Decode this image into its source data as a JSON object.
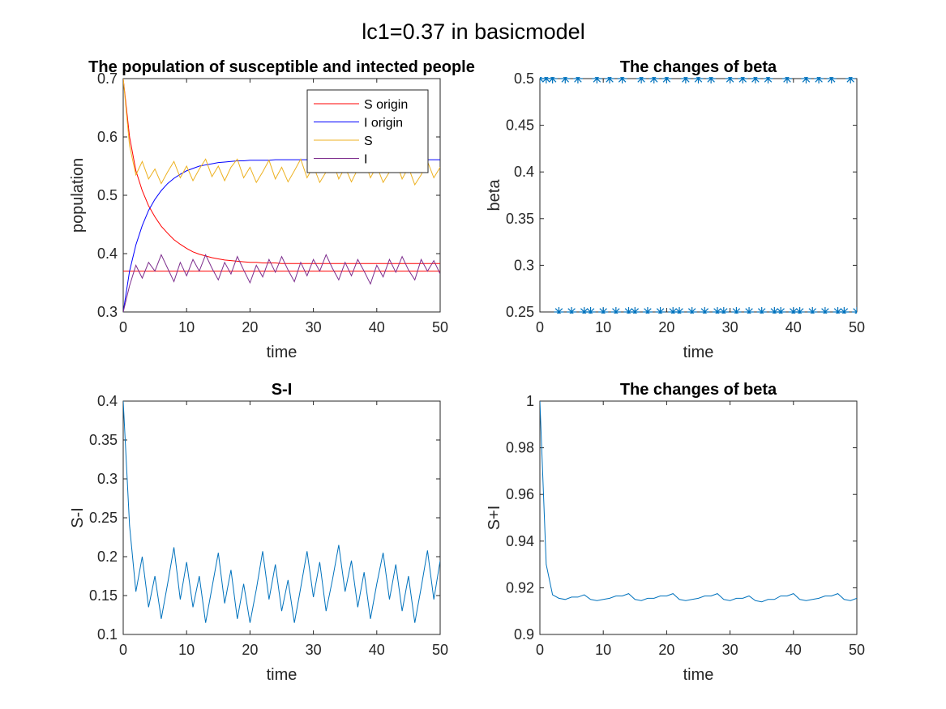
{
  "figure_title": "lc1=0.37 in basicmodel",
  "chart_data": [
    {
      "type": "line",
      "title": "The population of susceptible and intected people",
      "xlabel": "time",
      "ylabel": "population",
      "xlim": [
        0,
        50
      ],
      "ylim": [
        0.3,
        0.7
      ],
      "xticks": [
        "0",
        "10",
        "20",
        "30",
        "40",
        "50"
      ],
      "yticks": [
        "0.3",
        "0.4",
        "0.5",
        "0.6",
        "0.7"
      ],
      "legend_position": "top-right",
      "threshold_line": 0.37,
      "series": [
        {
          "name": "S origin",
          "color": "#ff0000",
          "x": [
            0,
            1,
            2,
            3,
            4,
            5,
            6,
            7,
            8,
            9,
            10,
            11,
            12,
            13,
            14,
            15,
            16,
            17,
            18,
            19,
            20,
            21,
            22,
            23,
            24,
            25,
            26,
            27,
            28,
            29,
            30,
            31,
            32,
            33,
            34,
            35,
            36,
            37,
            38,
            39,
            40,
            41,
            42,
            43,
            44,
            45,
            46,
            47,
            48,
            49,
            50
          ],
          "values": [
            0.7,
            0.6,
            0.542,
            0.508,
            0.482,
            0.463,
            0.447,
            0.435,
            0.424,
            0.416,
            0.409,
            0.403,
            0.399,
            0.396,
            0.393,
            0.391,
            0.389,
            0.388,
            0.387,
            0.386,
            0.385,
            0.385,
            0.384,
            0.384,
            0.384,
            0.383,
            0.383,
            0.383,
            0.383,
            0.383,
            0.383,
            0.383,
            0.383,
            0.383,
            0.383,
            0.383,
            0.383,
            0.383,
            0.383,
            0.383,
            0.383,
            0.383,
            0.383,
            0.383,
            0.383,
            0.383,
            0.383,
            0.383,
            0.383,
            0.383,
            0.383
          ]
        },
        {
          "name": "I origin",
          "color": "#0000ff",
          "x": [
            0,
            1,
            2,
            3,
            4,
            5,
            6,
            7,
            8,
            9,
            10,
            11,
            12,
            13,
            14,
            15,
            16,
            17,
            18,
            19,
            20,
            21,
            22,
            23,
            24,
            25,
            26,
            27,
            28,
            29,
            30,
            31,
            32,
            33,
            34,
            35,
            36,
            37,
            38,
            39,
            40,
            41,
            42,
            43,
            44,
            45,
            46,
            47,
            48,
            49,
            50
          ],
          "values": [
            0.3,
            0.37,
            0.415,
            0.448,
            0.474,
            0.493,
            0.508,
            0.52,
            0.529,
            0.536,
            0.542,
            0.546,
            0.55,
            0.552,
            0.554,
            0.556,
            0.557,
            0.558,
            0.559,
            0.559,
            0.56,
            0.56,
            0.56,
            0.56,
            0.561,
            0.561,
            0.561,
            0.561,
            0.561,
            0.561,
            0.561,
            0.561,
            0.561,
            0.561,
            0.561,
            0.561,
            0.561,
            0.561,
            0.561,
            0.561,
            0.561,
            0.561,
            0.561,
            0.561,
            0.561,
            0.561,
            0.561,
            0.561,
            0.561,
            0.561,
            0.561
          ]
        },
        {
          "name": "S",
          "color": "#edb120",
          "x": [
            0,
            1,
            2,
            3,
            4,
            5,
            6,
            7,
            8,
            9,
            10,
            11,
            12,
            13,
            14,
            15,
            16,
            17,
            18,
            19,
            20,
            21,
            22,
            23,
            24,
            25,
            26,
            27,
            28,
            29,
            30,
            31,
            32,
            33,
            34,
            35,
            36,
            37,
            38,
            39,
            40,
            41,
            42,
            43,
            44,
            45,
            46,
            47,
            48,
            49,
            50
          ],
          "values": [
            0.7,
            0.585,
            0.535,
            0.558,
            0.528,
            0.545,
            0.52,
            0.54,
            0.558,
            0.53,
            0.55,
            0.525,
            0.545,
            0.562,
            0.532,
            0.55,
            0.525,
            0.548,
            0.562,
            0.53,
            0.548,
            0.522,
            0.54,
            0.56,
            0.528,
            0.548,
            0.523,
            0.542,
            0.562,
            0.53,
            0.55,
            0.522,
            0.54,
            0.56,
            0.528,
            0.548,
            0.523,
            0.545,
            0.562,
            0.53,
            0.55,
            0.522,
            0.54,
            0.56,
            0.528,
            0.548,
            0.518,
            0.535,
            0.558,
            0.53,
            0.548
          ]
        },
        {
          "name": "I",
          "color": "#7e2f8e",
          "x": [
            0,
            1,
            2,
            3,
            4,
            5,
            6,
            7,
            8,
            9,
            10,
            11,
            12,
            13,
            14,
            15,
            16,
            17,
            18,
            19,
            20,
            21,
            22,
            23,
            24,
            25,
            26,
            27,
            28,
            29,
            30,
            31,
            32,
            33,
            34,
            35,
            36,
            37,
            38,
            39,
            40,
            41,
            42,
            43,
            44,
            45,
            46,
            47,
            48,
            49,
            50
          ],
          "values": [
            0.3,
            0.345,
            0.38,
            0.358,
            0.385,
            0.37,
            0.398,
            0.375,
            0.352,
            0.385,
            0.362,
            0.39,
            0.37,
            0.398,
            0.375,
            0.355,
            0.385,
            0.365,
            0.395,
            0.372,
            0.35,
            0.38,
            0.36,
            0.39,
            0.368,
            0.395,
            0.372,
            0.352,
            0.385,
            0.362,
            0.39,
            0.37,
            0.398,
            0.375,
            0.355,
            0.385,
            0.362,
            0.39,
            0.37,
            0.348,
            0.38,
            0.36,
            0.39,
            0.368,
            0.395,
            0.372,
            0.355,
            0.39,
            0.37,
            0.388,
            0.365
          ]
        }
      ]
    },
    {
      "type": "scatter",
      "title": "The changes of beta",
      "xlabel": "time",
      "ylabel": "beta",
      "xlim": [
        0,
        50
      ],
      "ylim": [
        0.25,
        0.5
      ],
      "xticks": [
        "0",
        "10",
        "20",
        "30",
        "40",
        "50"
      ],
      "yticks": [
        "0.25",
        "0.3",
        "0.35",
        "0.4",
        "0.45",
        "0.5"
      ],
      "marker": "asterisk",
      "series": [
        {
          "color": "#0072bd",
          "x": [
            0,
            1,
            2,
            3,
            4,
            5,
            6,
            7,
            8,
            9,
            10,
            11,
            12,
            13,
            14,
            15,
            16,
            17,
            18,
            19,
            20,
            21,
            22,
            23,
            24,
            25,
            26,
            27,
            28,
            29,
            30,
            31,
            32,
            33,
            34,
            35,
            36,
            37,
            38,
            39,
            40,
            41,
            42,
            43,
            44,
            45,
            46,
            47,
            48,
            49,
            50
          ],
          "values": [
            0.5,
            0.5,
            0.5,
            0.25,
            0.5,
            0.25,
            0.5,
            0.25,
            0.25,
            0.5,
            0.25,
            0.5,
            0.25,
            0.5,
            0.25,
            0.25,
            0.5,
            0.25,
            0.5,
            0.25,
            0.5,
            0.25,
            0.25,
            0.5,
            0.25,
            0.5,
            0.25,
            0.5,
            0.25,
            0.25,
            0.5,
            0.25,
            0.5,
            0.25,
            0.5,
            0.25,
            0.5,
            0.25,
            0.25,
            0.5,
            0.25,
            0.25,
            0.5,
            0.25,
            0.5,
            0.25,
            0.5,
            0.25,
            0.25,
            0.5,
            0.25
          ]
        }
      ]
    },
    {
      "type": "line",
      "title": "S-I",
      "xlabel": "time",
      "ylabel": "S-I",
      "xlim": [
        0,
        50
      ],
      "ylim": [
        0.1,
        0.4
      ],
      "xticks": [
        "0",
        "10",
        "20",
        "30",
        "40",
        "50"
      ],
      "yticks": [
        "0.1",
        "0.15",
        "0.2",
        "0.25",
        "0.3",
        "0.35",
        "0.4"
      ],
      "series": [
        {
          "color": "#0072bd",
          "x": [
            0,
            1,
            2,
            3,
            4,
            5,
            6,
            7,
            8,
            9,
            10,
            11,
            12,
            13,
            14,
            15,
            16,
            17,
            18,
            19,
            20,
            21,
            22,
            23,
            24,
            25,
            26,
            27,
            28,
            29,
            30,
            31,
            32,
            33,
            34,
            35,
            36,
            37,
            38,
            39,
            40,
            41,
            42,
            43,
            44,
            45,
            46,
            47,
            48,
            49,
            50
          ],
          "values": [
            0.4,
            0.24,
            0.155,
            0.2,
            0.135,
            0.175,
            0.12,
            0.165,
            0.212,
            0.145,
            0.193,
            0.135,
            0.175,
            0.115,
            0.16,
            0.205,
            0.14,
            0.183,
            0.12,
            0.165,
            0.115,
            0.158,
            0.207,
            0.145,
            0.19,
            0.13,
            0.17,
            0.115,
            0.16,
            0.207,
            0.148,
            0.193,
            0.13,
            0.17,
            0.215,
            0.155,
            0.195,
            0.135,
            0.18,
            0.12,
            0.165,
            0.205,
            0.145,
            0.19,
            0.13,
            0.175,
            0.115,
            0.16,
            0.208,
            0.145,
            0.195
          ]
        }
      ]
    },
    {
      "type": "line",
      "title": "The changes of beta",
      "xlabel": "time",
      "ylabel": "S+I",
      "xlim": [
        0,
        50
      ],
      "ylim": [
        0.9,
        1.0
      ],
      "xticks": [
        "0",
        "10",
        "20",
        "30",
        "40",
        "50"
      ],
      "yticks": [
        "0.9",
        "0.92",
        "0.94",
        "0.96",
        "0.98",
        "1"
      ],
      "series": [
        {
          "color": "#0072bd",
          "x": [
            0,
            1,
            2,
            3,
            4,
            5,
            6,
            7,
            8,
            9,
            10,
            11,
            12,
            13,
            14,
            15,
            16,
            17,
            18,
            19,
            20,
            21,
            22,
            23,
            24,
            25,
            26,
            27,
            28,
            29,
            30,
            31,
            32,
            33,
            34,
            35,
            36,
            37,
            38,
            39,
            40,
            41,
            42,
            43,
            44,
            45,
            46,
            47,
            48,
            49,
            50
          ],
          "values": [
            1.0,
            0.93,
            0.917,
            0.9155,
            0.915,
            0.916,
            0.916,
            0.917,
            0.915,
            0.9145,
            0.915,
            0.9155,
            0.9165,
            0.9165,
            0.9175,
            0.915,
            0.9145,
            0.9155,
            0.9155,
            0.9165,
            0.9165,
            0.9175,
            0.915,
            0.9145,
            0.915,
            0.9155,
            0.9165,
            0.9165,
            0.9175,
            0.915,
            0.9145,
            0.9155,
            0.9155,
            0.9165,
            0.9145,
            0.914,
            0.915,
            0.915,
            0.9165,
            0.9165,
            0.9175,
            0.915,
            0.9145,
            0.915,
            0.9155,
            0.9165,
            0.9165,
            0.9175,
            0.915,
            0.9145,
            0.9155
          ]
        }
      ]
    }
  ]
}
